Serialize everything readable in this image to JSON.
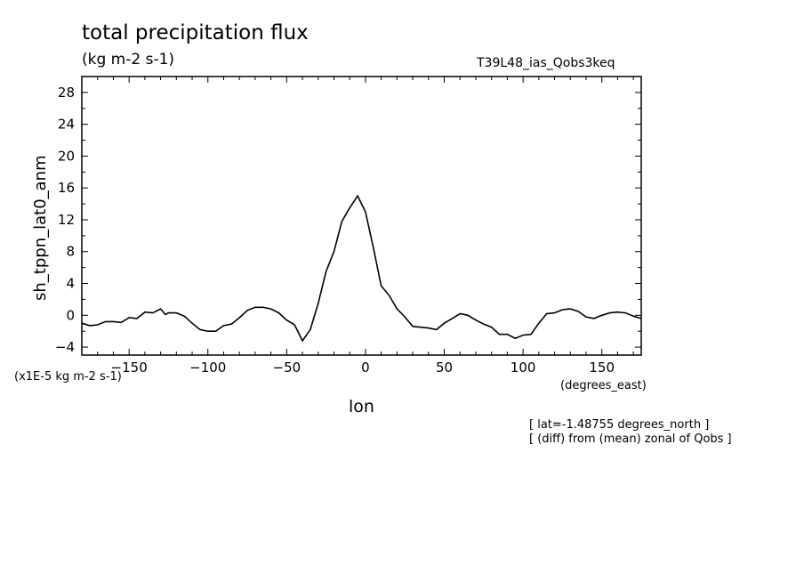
{
  "chart_data": {
    "type": "line",
    "title": "total precipitation flux",
    "subtitle": "(kg m-2 s-1)",
    "run_label": "T39L48_ias_Qobs3keq",
    "xlabel": "lon",
    "x_units": "(degrees_east)",
    "ylabel": "sh_tppn_lat0_anm",
    "y_scale_label": "(x1E-5 kg m-2 s-1)",
    "notes": [
      "[ lat=-1.48755 degrees_north ]",
      "[ (diff) from (mean) zonal of Qobs ]"
    ],
    "xlim": [
      -180,
      175
    ],
    "ylim": [
      -5,
      30
    ],
    "x_ticks": [
      -150,
      -100,
      -50,
      0,
      50,
      100,
      150
    ],
    "y_ticks": [
      -4,
      0,
      4,
      8,
      12,
      16,
      20,
      24,
      28
    ],
    "grid": false,
    "series": [
      {
        "x": [
          -180,
          -175,
          -170,
          -165,
          -160,
          -155,
          -150,
          -145,
          -140,
          -135,
          -130,
          -127,
          -125,
          -120,
          -115,
          -110,
          -105,
          -100,
          -95,
          -90,
          -85,
          -80,
          -75,
          -70,
          -65,
          -60,
          -55,
          -50,
          -45,
          -40,
          -35,
          -30,
          -25,
          -20,
          -15,
          -10,
          -5,
          0,
          5,
          10,
          15,
          20,
          25,
          30,
          35,
          40,
          45,
          50,
          55,
          60,
          65,
          70,
          75,
          80,
          85,
          90,
          95,
          100,
          105,
          110,
          115,
          120,
          125,
          130,
          135,
          140,
          145,
          150,
          155,
          160,
          165,
          170,
          175
        ],
        "y": [
          -1.0,
          -1.3,
          -1.2,
          -0.8,
          -0.8,
          -0.9,
          -0.3,
          -0.4,
          0.4,
          0.3,
          0.8,
          0.1,
          0.3,
          0.3,
          -0.1,
          -1.0,
          -1.8,
          -2.0,
          -2.0,
          -1.3,
          -1.1,
          -0.3,
          0.6,
          1.0,
          1.0,
          0.8,
          0.3,
          -0.6,
          -1.2,
          -3.2,
          -1.8,
          1.5,
          5.5,
          8.0,
          11.8,
          13.5,
          15.0,
          13.0,
          8.5,
          3.7,
          2.5,
          0.8,
          -0.2,
          -1.4,
          -1.5,
          -1.6,
          -1.8,
          -1.0,
          -0.4,
          0.2,
          0.0,
          -0.6,
          -1.1,
          -1.5,
          -2.4,
          -2.4,
          -2.9,
          -2.5,
          -2.4,
          -1.0,
          0.2,
          0.3,
          0.7,
          0.8,
          0.5,
          -0.2,
          -0.4,
          0.0,
          0.3,
          0.4,
          0.3,
          -0.1,
          -0.4
        ]
      }
    ]
  }
}
